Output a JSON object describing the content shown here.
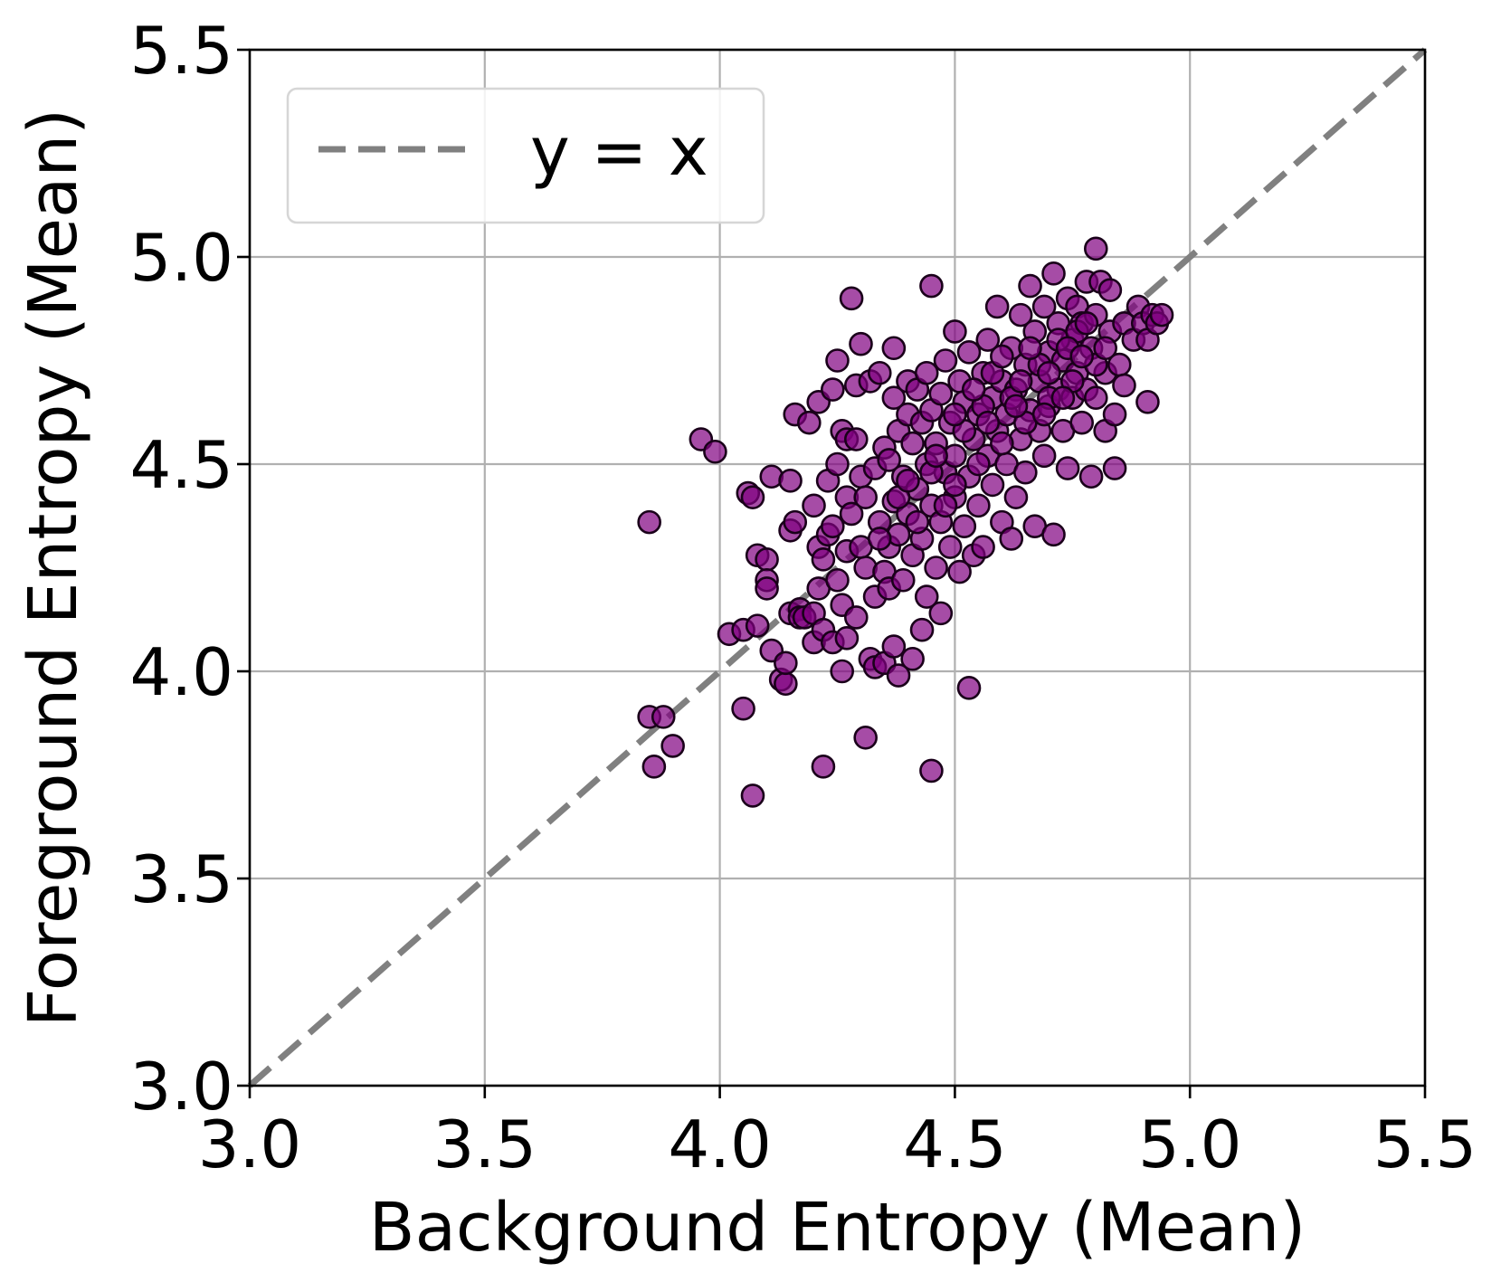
{
  "chart_data": {
    "type": "scatter",
    "title": "",
    "xlabel": "Background Entropy (Mean)",
    "ylabel": "Foreground Entropy (Mean)",
    "xlim": [
      3.0,
      5.5
    ],
    "ylim": [
      3.0,
      5.5
    ],
    "xticks": [
      "3.0",
      "3.5",
      "4.0",
      "4.5",
      "5.0",
      "5.5"
    ],
    "yticks": [
      "3.0",
      "3.5",
      "4.0",
      "4.5",
      "5.0",
      "5.5"
    ],
    "grid": true,
    "legend": {
      "placement": "top-left",
      "entries": [
        "y = x"
      ]
    },
    "reference_line": {
      "label": "y = x",
      "style": "dashed",
      "color": "#808080",
      "from": [
        3.0,
        3.0
      ],
      "to": [
        5.5,
        5.5
      ]
    },
    "point_color": "#800080",
    "points": [
      [
        3.85,
        4.36
      ],
      [
        3.85,
        3.89
      ],
      [
        3.86,
        3.77
      ],
      [
        3.88,
        3.89
      ],
      [
        3.9,
        3.82
      ],
      [
        3.96,
        4.56
      ],
      [
        3.99,
        4.53
      ],
      [
        4.02,
        4.09
      ],
      [
        4.05,
        4.1
      ],
      [
        4.05,
        3.91
      ],
      [
        4.06,
        4.43
      ],
      [
        4.07,
        4.42
      ],
      [
        4.07,
        3.7
      ],
      [
        4.08,
        4.11
      ],
      [
        4.08,
        4.28
      ],
      [
        4.1,
        4.27
      ],
      [
        4.1,
        4.22
      ],
      [
        4.1,
        4.2
      ],
      [
        4.11,
        4.05
      ],
      [
        4.11,
        4.47
      ],
      [
        4.13,
        3.98
      ],
      [
        4.14,
        3.97
      ],
      [
        4.14,
        4.02
      ],
      [
        4.15,
        4.14
      ],
      [
        4.15,
        4.46
      ],
      [
        4.15,
        4.34
      ],
      [
        4.16,
        4.36
      ],
      [
        4.16,
        4.62
      ],
      [
        4.17,
        4.15
      ],
      [
        4.17,
        4.13
      ],
      [
        4.18,
        4.13
      ],
      [
        4.19,
        4.6
      ],
      [
        4.2,
        4.07
      ],
      [
        4.2,
        4.14
      ],
      [
        4.2,
        4.4
      ],
      [
        4.21,
        4.2
      ],
      [
        4.21,
        4.3
      ],
      [
        4.21,
        4.65
      ],
      [
        4.22,
        3.77
      ],
      [
        4.22,
        4.1
      ],
      [
        4.22,
        4.27
      ],
      [
        4.23,
        4.46
      ],
      [
        4.23,
        4.33
      ],
      [
        4.24,
        4.68
      ],
      [
        4.24,
        4.07
      ],
      [
        4.24,
        4.35
      ],
      [
        4.25,
        4.22
      ],
      [
        4.25,
        4.5
      ],
      [
        4.25,
        4.75
      ],
      [
        4.26,
        4.0
      ],
      [
        4.26,
        4.58
      ],
      [
        4.26,
        4.16
      ],
      [
        4.27,
        4.08
      ],
      [
        4.27,
        4.42
      ],
      [
        4.27,
        4.56
      ],
      [
        4.27,
        4.29
      ],
      [
        4.28,
        4.9
      ],
      [
        4.28,
        4.38
      ],
      [
        4.29,
        4.69
      ],
      [
        4.29,
        4.56
      ],
      [
        4.29,
        4.13
      ],
      [
        4.3,
        4.79
      ],
      [
        4.3,
        4.3
      ],
      [
        4.3,
        4.47
      ],
      [
        4.31,
        3.84
      ],
      [
        4.31,
        4.25
      ],
      [
        4.31,
        4.42
      ],
      [
        4.32,
        4.7
      ],
      [
        4.32,
        4.03
      ],
      [
        4.33,
        4.18
      ],
      [
        4.33,
        4.49
      ],
      [
        4.33,
        4.01
      ],
      [
        4.34,
        4.72
      ],
      [
        4.34,
        4.36
      ],
      [
        4.35,
        4.02
      ],
      [
        4.35,
        4.54
      ],
      [
        4.35,
        4.24
      ],
      [
        4.36,
        4.3
      ],
      [
        4.36,
        4.51
      ],
      [
        4.36,
        4.2
      ],
      [
        4.37,
        4.06
      ],
      [
        4.37,
        4.78
      ],
      [
        4.37,
        4.41
      ],
      [
        4.37,
        4.66
      ],
      [
        4.38,
        3.99
      ],
      [
        4.38,
        4.58
      ],
      [
        4.38,
        4.33
      ],
      [
        4.39,
        4.47
      ],
      [
        4.39,
        4.22
      ],
      [
        4.4,
        4.62
      ],
      [
        4.4,
        4.7
      ],
      [
        4.4,
        4.38
      ],
      [
        4.41,
        4.03
      ],
      [
        4.41,
        4.55
      ],
      [
        4.41,
        4.28
      ],
      [
        4.42,
        4.68
      ],
      [
        4.42,
        4.44
      ],
      [
        4.43,
        4.1
      ],
      [
        4.43,
        4.6
      ],
      [
        4.43,
        4.32
      ],
      [
        4.44,
        4.5
      ],
      [
        4.44,
        4.72
      ],
      [
        4.44,
        4.18
      ],
      [
        4.45,
        3.76
      ],
      [
        4.45,
        4.93
      ],
      [
        4.45,
        4.4
      ],
      [
        4.45,
        4.63
      ],
      [
        4.46,
        4.25
      ],
      [
        4.46,
        4.55
      ],
      [
        4.47,
        4.14
      ],
      [
        4.47,
        4.67
      ],
      [
        4.47,
        4.36
      ],
      [
        4.48,
        4.48
      ],
      [
        4.48,
        4.75
      ],
      [
        4.49,
        4.3
      ],
      [
        4.49,
        4.6
      ],
      [
        4.5,
        4.82
      ],
      [
        4.5,
        4.42
      ],
      [
        4.5,
        4.52
      ],
      [
        4.51,
        4.24
      ],
      [
        4.51,
        4.7
      ],
      [
        4.52,
        4.35
      ],
      [
        4.52,
        4.65
      ],
      [
        4.53,
        3.96
      ],
      [
        4.53,
        4.47
      ],
      [
        4.53,
        4.77
      ],
      [
        4.54,
        4.56
      ],
      [
        4.54,
        4.28
      ],
      [
        4.55,
        4.62
      ],
      [
        4.55,
        4.4
      ],
      [
        4.56,
        4.72
      ],
      [
        4.56,
        4.3
      ],
      [
        4.57,
        4.52
      ],
      [
        4.57,
        4.8
      ],
      [
        4.58,
        4.45
      ],
      [
        4.58,
        4.66
      ],
      [
        4.59,
        4.58
      ],
      [
        4.59,
        4.88
      ],
      [
        4.6,
        4.36
      ],
      [
        4.6,
        4.7
      ],
      [
        4.61,
        4.5
      ],
      [
        4.61,
        4.62
      ],
      [
        4.62,
        4.78
      ],
      [
        4.62,
        4.32
      ],
      [
        4.63,
        4.42
      ],
      [
        4.63,
        4.68
      ],
      [
        4.64,
        4.86
      ],
      [
        4.64,
        4.56
      ],
      [
        4.65,
        4.74
      ],
      [
        4.65,
        4.48
      ],
      [
        4.66,
        4.63
      ],
      [
        4.66,
        4.93
      ],
      [
        4.67,
        4.35
      ],
      [
        4.67,
        4.82
      ],
      [
        4.68,
        4.58
      ],
      [
        4.68,
        4.7
      ],
      [
        4.69,
        4.52
      ],
      [
        4.69,
        4.88
      ],
      [
        4.7,
        4.77
      ],
      [
        4.7,
        4.64
      ],
      [
        4.71,
        4.33
      ],
      [
        4.71,
        4.96
      ],
      [
        4.72,
        4.68
      ],
      [
        4.72,
        4.84
      ],
      [
        4.73,
        4.58
      ],
      [
        4.73,
        4.75
      ],
      [
        4.74,
        4.9
      ],
      [
        4.74,
        4.49
      ],
      [
        4.75,
        4.8
      ],
      [
        4.75,
        4.66
      ],
      [
        4.76,
        4.88
      ],
      [
        4.76,
        4.72
      ],
      [
        4.77,
        4.6
      ],
      [
        4.77,
        4.84
      ],
      [
        4.78,
        4.94
      ],
      [
        4.78,
        4.68
      ],
      [
        4.79,
        4.47
      ],
      [
        4.79,
        4.78
      ],
      [
        4.8,
        5.02
      ],
      [
        4.8,
        4.86
      ],
      [
        4.8,
        4.66
      ],
      [
        4.81,
        4.94
      ],
      [
        4.82,
        4.72
      ],
      [
        4.82,
        4.58
      ],
      [
        4.83,
        4.92
      ],
      [
        4.83,
        4.82
      ],
      [
        4.84,
        4.49
      ],
      [
        4.84,
        4.62
      ],
      [
        4.85,
        4.74
      ],
      [
        4.86,
        4.84
      ],
      [
        4.86,
        4.69
      ],
      [
        4.88,
        4.8
      ],
      [
        4.89,
        4.88
      ],
      [
        4.9,
        4.84
      ],
      [
        4.91,
        4.65
      ],
      [
        4.91,
        4.8
      ],
      [
        4.92,
        4.86
      ],
      [
        4.93,
        4.84
      ],
      [
        4.94,
        4.86
      ],
      [
        4.55,
        4.5
      ],
      [
        4.6,
        4.55
      ],
      [
        4.65,
        4.6
      ],
      [
        4.7,
        4.66
      ],
      [
        4.75,
        4.7
      ],
      [
        4.5,
        4.45
      ],
      [
        4.45,
        4.48
      ],
      [
        4.58,
        4.72
      ],
      [
        4.62,
        4.66
      ],
      [
        4.68,
        4.74
      ],
      [
        4.72,
        4.8
      ],
      [
        4.76,
        4.82
      ],
      [
        4.52,
        4.58
      ],
      [
        4.56,
        4.64
      ],
      [
        4.48,
        4.4
      ],
      [
        4.42,
        4.36
      ],
      [
        4.38,
        4.42
      ],
      [
        4.34,
        4.32
      ],
      [
        4.4,
        4.46
      ],
      [
        4.46,
        4.52
      ],
      [
        4.64,
        4.7
      ],
      [
        4.7,
        4.72
      ],
      [
        4.74,
        4.78
      ],
      [
        4.78,
        4.84
      ],
      [
        4.66,
        4.78
      ],
      [
        4.6,
        4.76
      ],
      [
        4.54,
        4.68
      ],
      [
        4.5,
        4.62
      ],
      [
        4.57,
        4.6
      ],
      [
        4.63,
        4.64
      ],
      [
        4.69,
        4.62
      ],
      [
        4.73,
        4.66
      ],
      [
        4.8,
        4.74
      ],
      [
        4.82,
        4.78
      ],
      [
        4.77,
        4.76
      ]
    ]
  }
}
